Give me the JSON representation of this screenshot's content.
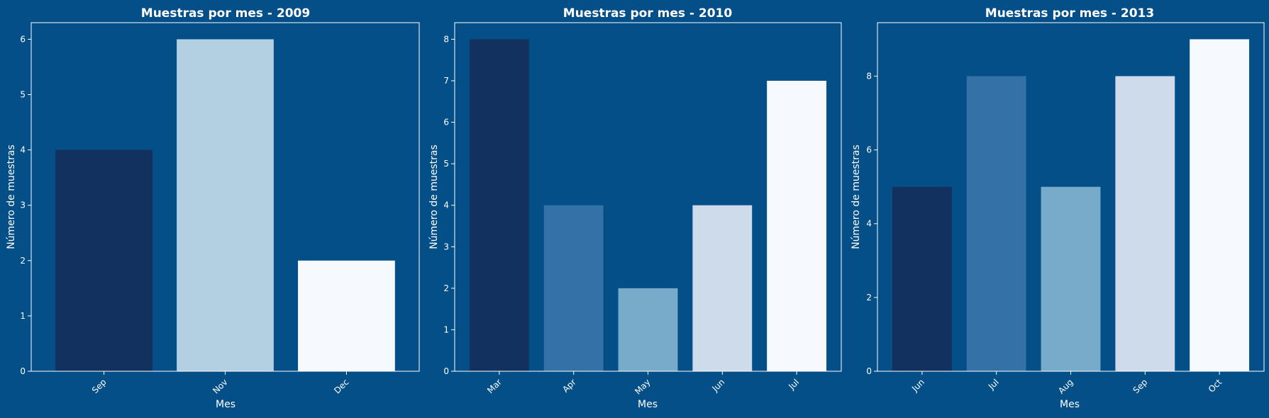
{
  "colors": {
    "background": "#054f88",
    "axes": "#ffffff",
    "palette": [
      "#13315f",
      "#3371a7",
      "#78aaca",
      "#b3cfe2",
      "#cddbea",
      "#f6faff"
    ]
  },
  "chart_data": [
    {
      "type": "bar",
      "title": "Muestras por mes - 2009",
      "xlabel": "Mes",
      "ylabel": "Número de muestras",
      "categories": [
        "Sep",
        "Nov",
        "Dec"
      ],
      "values": [
        4,
        6,
        2
      ],
      "bar_colors": [
        "#13315f",
        "#b3cfe2",
        "#f6faff"
      ],
      "ylim": [
        0,
        6.3
      ],
      "yticks": [
        0,
        1,
        2,
        3,
        4,
        5,
        6
      ],
      "grid": false
    },
    {
      "type": "bar",
      "title": "Muestras por mes - 2010",
      "xlabel": "Mes",
      "ylabel": "Número de muestras",
      "categories": [
        "Mar",
        "Apr",
        "May",
        "Jun",
        "Jul"
      ],
      "values": [
        8,
        4,
        2,
        4,
        7
      ],
      "bar_colors": [
        "#13315f",
        "#3371a7",
        "#78aaca",
        "#cddbea",
        "#f6faff"
      ],
      "ylim": [
        0,
        8.4
      ],
      "yticks": [
        0,
        1,
        2,
        3,
        4,
        5,
        6,
        7,
        8
      ],
      "grid": false
    },
    {
      "type": "bar",
      "title": "Muestras por mes - 2013",
      "xlabel": "Mes",
      "ylabel": "Número de muestras",
      "categories": [
        "Jun",
        "Jul",
        "Aug",
        "Sep",
        "Oct"
      ],
      "values": [
        5,
        8,
        5,
        8,
        9
      ],
      "bar_colors": [
        "#13315f",
        "#3371a7",
        "#78aaca",
        "#cddbea",
        "#f6faff"
      ],
      "ylim": [
        0,
        9.45
      ],
      "yticks": [
        0,
        2,
        4,
        6,
        8
      ],
      "grid": false
    }
  ]
}
